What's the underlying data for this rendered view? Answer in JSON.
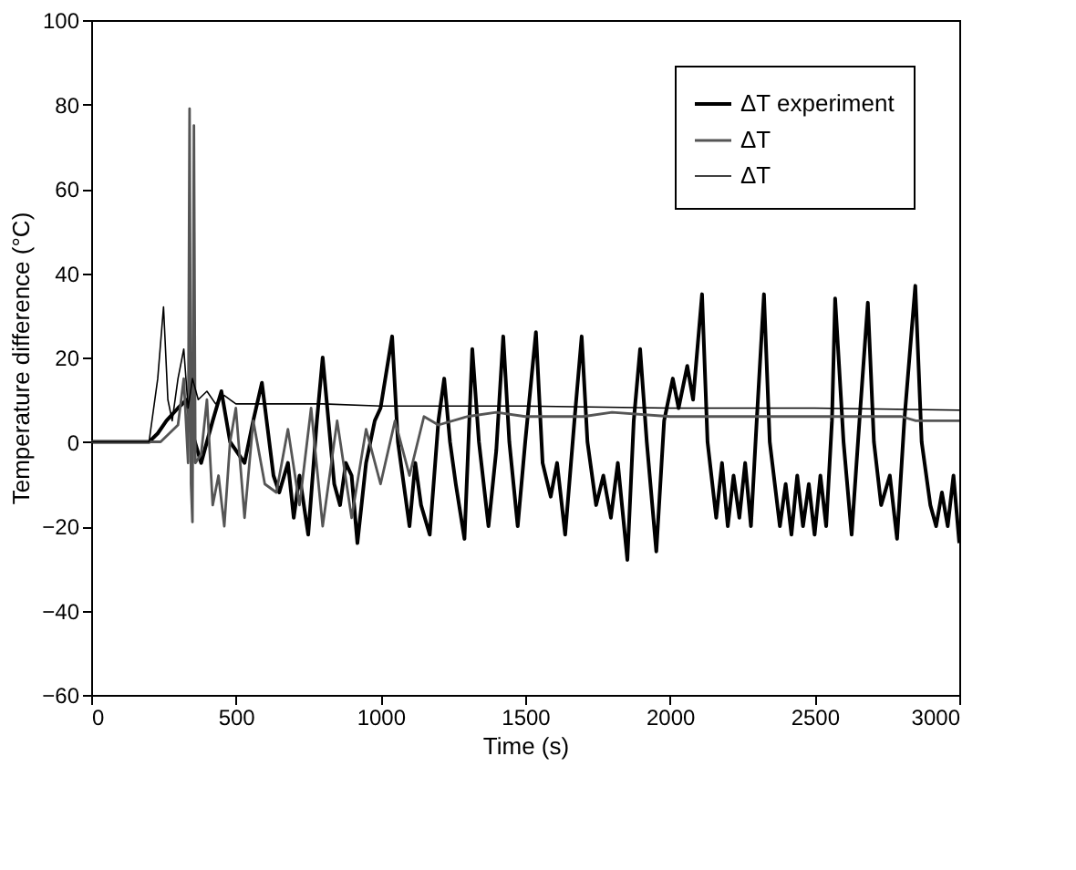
{
  "chart_data": {
    "type": "line",
    "xlabel": "Time (s)",
    "ylabel": "Temperature difference (°C)",
    "xlim": [
      0,
      3000
    ],
    "ylim": [
      -60,
      100
    ],
    "xticks": [
      0,
      500,
      1000,
      1500,
      2000,
      2500,
      3000
    ],
    "yticks": [
      -60,
      -40,
      -20,
      0,
      20,
      40,
      60,
      80,
      100
    ],
    "grid": false,
    "legend": "top right",
    "series": [
      {
        "name": "ΔT experiment",
        "color": "#000000",
        "x": [
          0,
          200,
          230,
          260,
          300,
          330,
          350,
          380,
          420,
          450,
          480,
          500,
          530,
          560,
          590,
          610,
          630,
          650,
          680,
          700,
          720,
          750,
          780,
          800,
          820,
          840,
          860,
          880,
          900,
          920,
          950,
          980,
          1000,
          1040,
          1060,
          1080,
          1100,
          1120,
          1140,
          1170,
          1200,
          1220,
          1240,
          1260,
          1290,
          1317,
          1340,
          1373,
          1400,
          1424,
          1445,
          1474,
          1500,
          1537,
          1560,
          1588,
          1610,
          1638,
          1670,
          1695,
          1715,
          1745,
          1770,
          1796,
          1820,
          1853,
          1875,
          1897,
          1920,
          1953,
          1980,
          2010,
          2030,
          2060,
          2080,
          2111,
          2130,
          2160,
          2180,
          2200,
          2220,
          2240,
          2260,
          2280,
          2300,
          2325,
          2345,
          2380,
          2400,
          2420,
          2440,
          2460,
          2480,
          2500,
          2520,
          2540,
          2560,
          2571,
          2600,
          2628,
          2655,
          2684,
          2705,
          2730,
          2760,
          2785,
          2810,
          2848,
          2870,
          2900,
          2920,
          2940,
          2960,
          2980,
          3000
        ],
        "values": [
          0,
          0,
          2,
          5,
          8,
          10,
          2,
          -5,
          5,
          12,
          0,
          -2,
          -5,
          5,
          14,
          3,
          -8,
          -12,
          -5,
          -18,
          -8,
          -22,
          5,
          20,
          5,
          -10,
          -15,
          -5,
          -8,
          -24,
          -5,
          5,
          8,
          25,
          0,
          -10,
          -20,
          -5,
          -15,
          -22,
          5,
          15,
          0,
          -10,
          -23,
          22,
          0,
          -20,
          -2,
          25,
          0,
          -20,
          0,
          26,
          -5,
          -13,
          -5,
          -22,
          5,
          25,
          0,
          -15,
          -8,
          -18,
          -5,
          -28,
          5,
          22,
          0,
          -26,
          5,
          15,
          8,
          18,
          10,
          35,
          0,
          -18,
          -5,
          -20,
          -8,
          -18,
          -5,
          -20,
          5,
          35,
          0,
          -20,
          -10,
          -22,
          -8,
          -20,
          -10,
          -22,
          -8,
          -20,
          5,
          34,
          0,
          -22,
          5,
          33,
          0,
          -15,
          -8,
          -23,
          5,
          37,
          0,
          -15,
          -20,
          -12,
          -20,
          -8,
          -24
        ]
      },
      {
        "name": "ΔT",
        "color": "#555555",
        "x": [
          0,
          240,
          270,
          300,
          320,
          335,
          340,
          345,
          350,
          355,
          360,
          380,
          400,
          420,
          440,
          460,
          480,
          500,
          530,
          560,
          600,
          640,
          680,
          720,
          760,
          800,
          850,
          900,
          950,
          1000,
          1050,
          1100,
          1150,
          1200,
          1300,
          1400,
          1500,
          1600,
          1700,
          1800,
          2000,
          2200,
          2400,
          2600,
          2800,
          2850,
          3000
        ],
        "values": [
          0,
          0,
          2,
          4,
          15,
          -5,
          79,
          -10,
          -19,
          75,
          -5,
          -3,
          10,
          -15,
          -8,
          -20,
          0,
          8,
          -18,
          5,
          -10,
          -12,
          3,
          -15,
          8,
          -20,
          5,
          -18,
          3,
          -10,
          5,
          -8,
          6,
          4,
          6,
          7,
          6,
          6,
          6,
          7,
          6,
          6,
          6,
          6,
          6,
          5,
          5
        ]
      },
      {
        "name": "ΔT",
        "color": "#000000",
        "x": [
          0,
          200,
          230,
          250,
          265,
          280,
          300,
          320,
          335,
          350,
          370,
          400,
          430,
          460,
          500,
          600,
          800,
          1000,
          1500,
          2000,
          2500,
          3000
        ],
        "values": [
          0,
          0,
          15,
          32,
          10,
          5,
          15,
          22,
          8,
          15,
          10,
          12,
          9,
          11,
          9,
          9,
          9,
          8.5,
          8.5,
          8,
          8,
          7.5
        ]
      }
    ]
  }
}
